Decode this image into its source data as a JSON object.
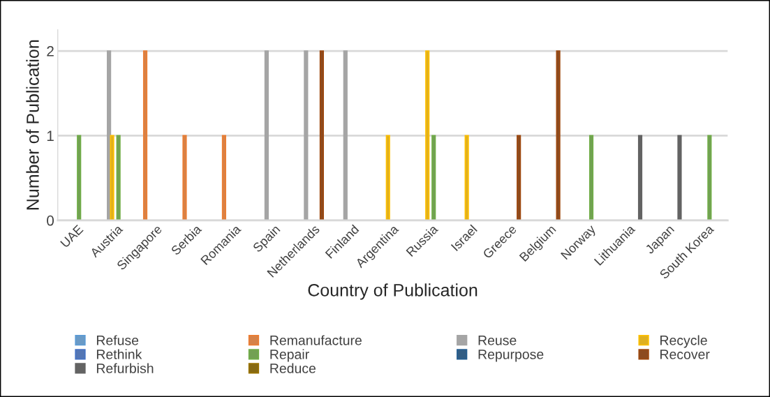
{
  "chart_data": {
    "type": "bar",
    "xlabel": "Country of Publication",
    "ylabel": "Number of Publication",
    "categories": [
      "UAE",
      "Austria",
      "Singapore",
      "Serbia",
      "Romania",
      "Spain",
      "Netherlands",
      "Finland",
      "Argentina",
      "Russia",
      "Israel",
      "Greece",
      "Belgium",
      "Norway",
      "Lithuania",
      "Japan",
      "South Korea"
    ],
    "series": [
      {
        "name": "Refuse",
        "color": "#5b9bd5",
        "values": [
          0,
          0,
          0,
          0,
          0,
          0,
          0,
          0,
          0,
          0,
          0,
          0,
          0,
          0,
          0,
          0,
          0
        ]
      },
      {
        "name": "Remanufacture",
        "color": "#ed7d31",
        "values": [
          0,
          0,
          2,
          1,
          1,
          0,
          0,
          0,
          0,
          0,
          0,
          0,
          0,
          0,
          0,
          0,
          0
        ]
      },
      {
        "name": "Reuse",
        "color": "#a5a5a5",
        "values": [
          0,
          2,
          0,
          0,
          0,
          2,
          2,
          2,
          0,
          0,
          0,
          0,
          0,
          0,
          0,
          0,
          0
        ]
      },
      {
        "name": "Recycle",
        "color": "#ffc000",
        "values": [
          0,
          1,
          0,
          0,
          0,
          0,
          0,
          0,
          1,
          2,
          1,
          0,
          0,
          0,
          0,
          0,
          0
        ]
      },
      {
        "name": "Rethink",
        "color": "#4472c4",
        "values": [
          0,
          0,
          0,
          0,
          0,
          0,
          0,
          0,
          0,
          0,
          0,
          0,
          0,
          0,
          0,
          0,
          0
        ]
      },
      {
        "name": "Repair",
        "color": "#70ad47",
        "values": [
          1,
          1,
          0,
          0,
          0,
          0,
          0,
          0,
          0,
          1,
          0,
          0,
          0,
          1,
          0,
          0,
          1
        ]
      },
      {
        "name": "Repurpose",
        "color": "#255e91",
        "values": [
          0,
          0,
          0,
          0,
          0,
          0,
          0,
          0,
          0,
          0,
          0,
          0,
          0,
          0,
          0,
          0,
          0
        ]
      },
      {
        "name": "Recover",
        "color": "#9e480e",
        "values": [
          0,
          0,
          0,
          0,
          0,
          0,
          2,
          0,
          0,
          0,
          0,
          1,
          2,
          0,
          0,
          0,
          0
        ]
      },
      {
        "name": "Refurbish",
        "color": "#636363",
        "values": [
          0,
          0,
          0,
          0,
          0,
          0,
          0,
          0,
          0,
          0,
          0,
          0,
          0,
          0,
          1,
          1,
          0
        ]
      },
      {
        "name": "Reduce",
        "color": "#997300",
        "values": [
          0,
          0,
          0,
          0,
          0,
          0,
          0,
          0,
          0,
          0,
          0,
          0,
          0,
          0,
          0,
          0,
          0
        ]
      }
    ],
    "ylim": [
      0,
      2.25
    ],
    "yticks": [
      0,
      1,
      2
    ],
    "grid": "y",
    "legend": "bottom"
  }
}
